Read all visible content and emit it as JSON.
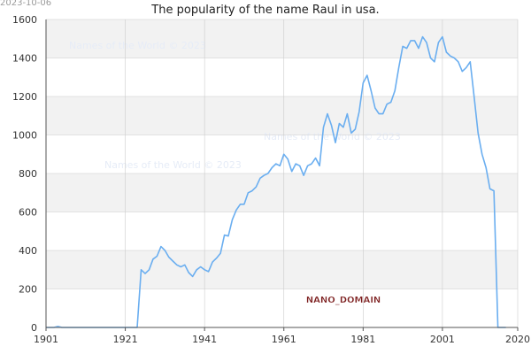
{
  "stamp": "2023-10-06",
  "watermarks": [
    "Names of the World © 2023",
    "Names of the World © 2023",
    "Names of the World © 2023"
  ],
  "footer_label": "NANO_DOMAIN",
  "colors": {
    "line": "#6aaef0",
    "band": "#f2f2f2",
    "grid": "#cccccc",
    "axis": "#555555",
    "watermark": "#e6ecf7",
    "label_fill": "#7a1b1b"
  },
  "chart_data": {
    "type": "line",
    "title": "The popularity of the name Raul in usa.",
    "xlabel": "",
    "ylabel": "",
    "xlim": [
      1901,
      2020
    ],
    "ylim": [
      0,
      1600
    ],
    "x_ticks": [
      1901,
      1921,
      1941,
      1961,
      1981,
      2001,
      2020
    ],
    "y_ticks": [
      0,
      200,
      400,
      600,
      800,
      1000,
      1200,
      1400,
      1600
    ],
    "grid": true,
    "series": [
      {
        "name": "",
        "x": [
          1901,
          1902,
          1903,
          1904,
          1905,
          1906,
          1907,
          1908,
          1909,
          1910,
          1911,
          1912,
          1913,
          1914,
          1915,
          1916,
          1917,
          1918,
          1919,
          1920,
          1921,
          1922,
          1923,
          1924,
          1925,
          1926,
          1927,
          1928,
          1929,
          1930,
          1931,
          1932,
          1933,
          1934,
          1935,
          1936,
          1937,
          1938,
          1939,
          1940,
          1941,
          1942,
          1943,
          1944,
          1945,
          1946,
          1947,
          1948,
          1949,
          1950,
          1951,
          1952,
          1953,
          1954,
          1955,
          1956,
          1957,
          1958,
          1959,
          1960,
          1961,
          1962,
          1963,
          1964,
          1965,
          1966,
          1967,
          1968,
          1969,
          1970,
          1971,
          1972,
          1973,
          1974,
          1975,
          1976,
          1977,
          1978,
          1979,
          1980,
          1981,
          1982,
          1983,
          1984,
          1985,
          1986,
          1987,
          1988,
          1989,
          1990,
          1991,
          1992,
          1993,
          1994,
          1995,
          1996,
          1997,
          1998,
          1999,
          2000,
          2001,
          2002,
          2003,
          2004,
          2005,
          2006,
          2007,
          2008,
          2009,
          2010,
          2011,
          2012,
          2013,
          2014,
          2015,
          2016,
          2017
        ],
        "values": [
          0,
          0,
          0,
          5,
          0,
          0,
          0,
          0,
          0,
          0,
          0,
          0,
          0,
          0,
          0,
          0,
          0,
          0,
          0,
          0,
          0,
          0,
          0,
          0,
          300,
          280,
          300,
          355,
          370,
          420,
          400,
          365,
          345,
          325,
          315,
          325,
          285,
          265,
          300,
          315,
          300,
          290,
          340,
          360,
          385,
          480,
          475,
          560,
          610,
          640,
          640,
          700,
          710,
          730,
          775,
          790,
          800,
          830,
          850,
          840,
          900,
          875,
          810,
          850,
          840,
          790,
          840,
          850,
          880,
          840,
          1040,
          1110,
          1050,
          960,
          1060,
          1040,
          1110,
          1010,
          1030,
          1120,
          1270,
          1310,
          1230,
          1140,
          1110,
          1110,
          1160,
          1170,
          1230,
          1350,
          1460,
          1450,
          1490,
          1490,
          1450,
          1510,
          1480,
          1400,
          1380,
          1480,
          1510,
          1430,
          1410,
          1400,
          1380,
          1330,
          1350,
          1380,
          1200,
          1010,
          900,
          830,
          720,
          710,
          0,
          0,
          0
        ]
      }
    ]
  }
}
